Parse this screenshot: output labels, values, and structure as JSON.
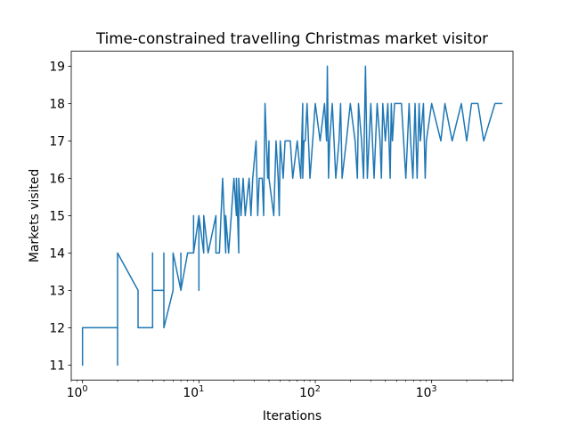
{
  "chart_data": {
    "type": "line",
    "title": "Time-constrained travelling Christmas market visitor",
    "xlabel": "Iterations",
    "ylabel": "Markets visited",
    "xscale": "log",
    "xlim": [
      0.8,
      5000
    ],
    "ylim": [
      10.6,
      19.4
    ],
    "x_ticks": [
      {
        "base": "10",
        "exp": "0",
        "value": 1
      },
      {
        "base": "10",
        "exp": "1",
        "value": 10
      },
      {
        "base": "10",
        "exp": "2",
        "value": 100
      },
      {
        "base": "10",
        "exp": "3",
        "value": 1000
      }
    ],
    "y_ticks": [
      "11",
      "12",
      "13",
      "14",
      "15",
      "16",
      "17",
      "18",
      "19"
    ],
    "grid": false,
    "legend": "none",
    "line_color": "#1f77b4",
    "series": [
      {
        "x": [
          1,
          1,
          2,
          2,
          2,
          2,
          3,
          3,
          4,
          4,
          4,
          5,
          5,
          5,
          6,
          6,
          7,
          7,
          7,
          8,
          9,
          9,
          9,
          10,
          10,
          10,
          11,
          11,
          12,
          14,
          14,
          15,
          16,
          17,
          17,
          18,
          20,
          21,
          21,
          22,
          22,
          23,
          24,
          25,
          27,
          28,
          29,
          31,
          32,
          33,
          35,
          36,
          37,
          39,
          40,
          40,
          44,
          46,
          48,
          49,
          50,
          53,
          55,
          58,
          61,
          64,
          70,
          75,
          78,
          78,
          80,
          82,
          85,
          90,
          95,
          100,
          110,
          120,
          125,
          127,
          130,
          133,
          140,
          150,
          160,
          165,
          170,
          185,
          200,
          220,
          230,
          235,
          250,
          260,
          270,
          280,
          290,
          300,
          320,
          340,
          360,
          370,
          380,
          400,
          420,
          440,
          450,
          460,
          480,
          500,
          550,
          600,
          640,
          660,
          690,
          720,
          750,
          780,
          800,
          850,
          880,
          900,
          1000,
          1200,
          1300,
          1500,
          1800,
          2000,
          2200,
          2500,
          2800,
          3500,
          4000
        ],
        "y": [
          11,
          12,
          12,
          14,
          11,
          14,
          13,
          12,
          12,
          14,
          13,
          13,
          14,
          12,
          13,
          14,
          13,
          14,
          13,
          14,
          14,
          15,
          14,
          15,
          13,
          15,
          14,
          15,
          14,
          15,
          14,
          14,
          16,
          14,
          15,
          14,
          16,
          15,
          16,
          14,
          16,
          15,
          16,
          15,
          16,
          15,
          16,
          17,
          15,
          16,
          16,
          15,
          18,
          16,
          17,
          16,
          15,
          17,
          16,
          15,
          17,
          16,
          17,
          17,
          17,
          16,
          17,
          16,
          18,
          16,
          17,
          17,
          18,
          16,
          17,
          18,
          17,
          18,
          17,
          19,
          16,
          17,
          18,
          16,
          17,
          18,
          16,
          17,
          18,
          17,
          16,
          18,
          17,
          16,
          19,
          16,
          17,
          18,
          16,
          18,
          17,
          16,
          18,
          17,
          18,
          16,
          18,
          17,
          18,
          18,
          18,
          16,
          18,
          17,
          16,
          18,
          16,
          18,
          17,
          18,
          16,
          17,
          18,
          17,
          18,
          17,
          18,
          17,
          18,
          18,
          17,
          18,
          18
        ]
      }
    ]
  }
}
